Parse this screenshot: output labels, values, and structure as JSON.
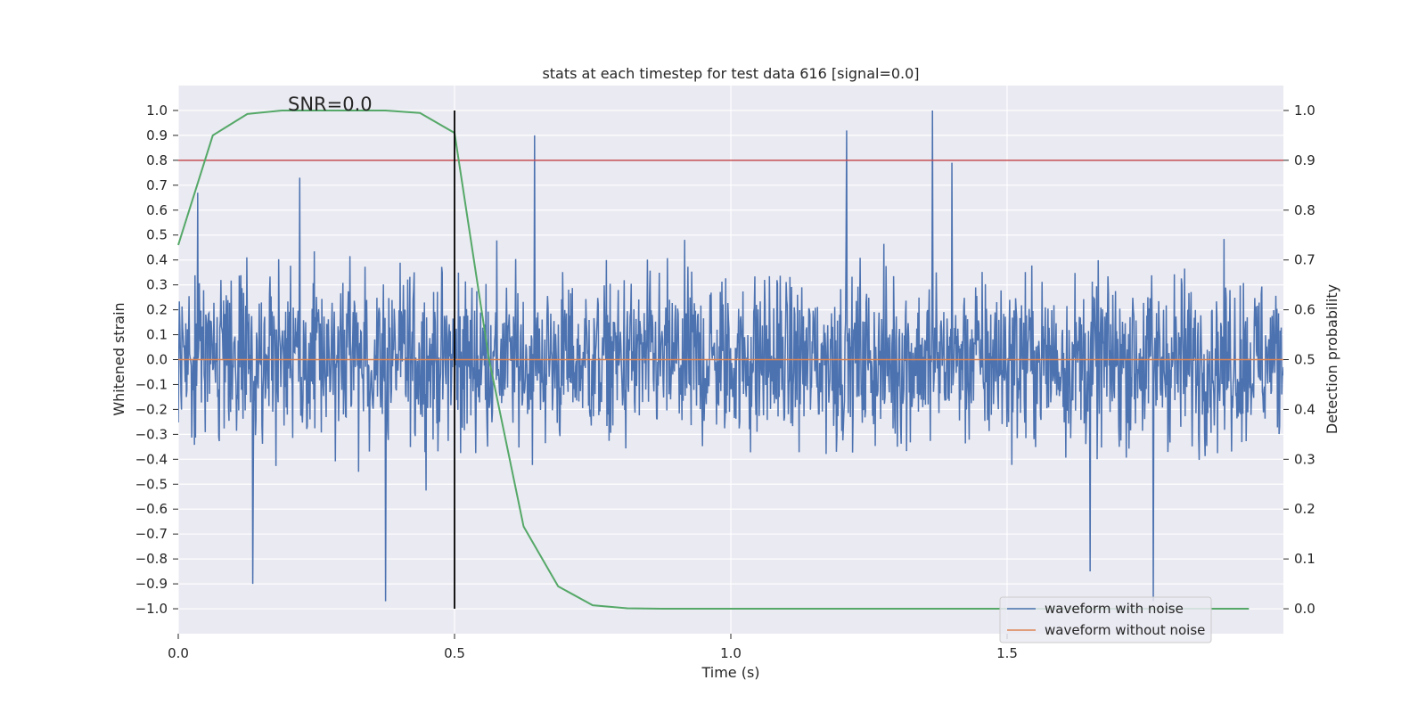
{
  "chart_data": {
    "type": "line",
    "title": "stats at each timestep for test data 616 [signal=0.0]",
    "xlabel": "Time (s)",
    "ylabel": "Whitened strain",
    "y2label": "Detection probability",
    "annotation": "SNR=0.0",
    "xlim": [
      0.0,
      2.0
    ],
    "ylim": [
      -1.1,
      1.1
    ],
    "y2lim": [
      -0.05,
      1.05
    ],
    "x_ticks": [
      "0.0",
      "0.5",
      "1.0",
      "1.5"
    ],
    "x_tick_values": [
      0.0,
      0.5,
      1.0,
      1.5
    ],
    "y_ticks": [
      "1.0",
      "0.9",
      "0.8",
      "0.7",
      "0.6",
      "0.5",
      "0.4",
      "0.3",
      "0.2",
      "0.1",
      "0.0",
      "−0.1",
      "−0.2",
      "−0.3",
      "−0.4",
      "−0.5",
      "−0.6",
      "−0.7",
      "−0.8",
      "−0.9",
      "−1.0"
    ],
    "y_tick_values": [
      1.0,
      0.9,
      0.8,
      0.7,
      0.6,
      0.5,
      0.4,
      0.3,
      0.2,
      0.1,
      0.0,
      -0.1,
      -0.2,
      -0.3,
      -0.4,
      -0.5,
      -0.6,
      -0.7,
      -0.8,
      -0.9,
      -1.0
    ],
    "y2_ticks": [
      "1.0",
      "0.9",
      "0.8",
      "0.7",
      "0.6",
      "0.5",
      "0.4",
      "0.3",
      "0.2",
      "0.1",
      "0.0"
    ],
    "y2_tick_values": [
      1.0,
      0.9,
      0.8,
      0.7,
      0.6,
      0.5,
      0.4,
      0.3,
      0.2,
      0.1,
      0.0
    ],
    "grid": true,
    "legend_position": "bottom-right",
    "series": [
      {
        "name": "waveform with noise",
        "axis": "left",
        "color": "#4c72b0",
        "sample_count": 2048,
        "x_range": [
          0.0,
          2.0
        ],
        "y_range": [
          -0.97,
          1.0
        ],
        "visible_peaks": [
          {
            "x": 0.035,
            "y": 0.67
          },
          {
            "x": 0.22,
            "y": 0.73
          },
          {
            "x": 0.645,
            "y": 0.9
          },
          {
            "x": 1.21,
            "y": 0.92
          },
          {
            "x": 1.365,
            "y": 1.0
          },
          {
            "x": 1.4,
            "y": 0.79
          },
          {
            "x": 0.375,
            "y": -0.97
          },
          {
            "x": 0.135,
            "y": -0.9
          },
          {
            "x": 1.765,
            "y": -0.97
          },
          {
            "x": 1.65,
            "y": -0.85
          }
        ]
      },
      {
        "name": "waveform without noise",
        "axis": "left",
        "color": "#dd8452",
        "x": [
          0.0,
          2.0
        ],
        "y": [
          0.0,
          0.0
        ]
      },
      {
        "name": "detection probability",
        "axis": "right",
        "color": "#55a868",
        "x": [
          0.0,
          0.0625,
          0.125,
          0.1875,
          0.25,
          0.3125,
          0.375,
          0.4375,
          0.5,
          0.5625,
          0.625,
          0.6875,
          0.75,
          0.8125,
          0.875,
          1.0,
          1.25,
          1.5,
          1.75,
          1.9375
        ],
        "y": [
          0.73,
          0.95,
          0.993,
          1.0,
          1.0,
          1.0,
          1.0,
          0.995,
          0.955,
          0.5,
          0.165,
          0.045,
          0.007,
          0.001,
          0.0,
          0.0,
          0.0,
          0.0,
          0.0,
          0.0
        ]
      }
    ],
    "hlines": [
      {
        "axis": "left",
        "y": 0.8,
        "color": "#c44e52"
      }
    ],
    "vlines": [
      {
        "x": 0.5,
        "y_from": -1.0,
        "y_to": 1.0,
        "color": "#000000"
      }
    ]
  }
}
